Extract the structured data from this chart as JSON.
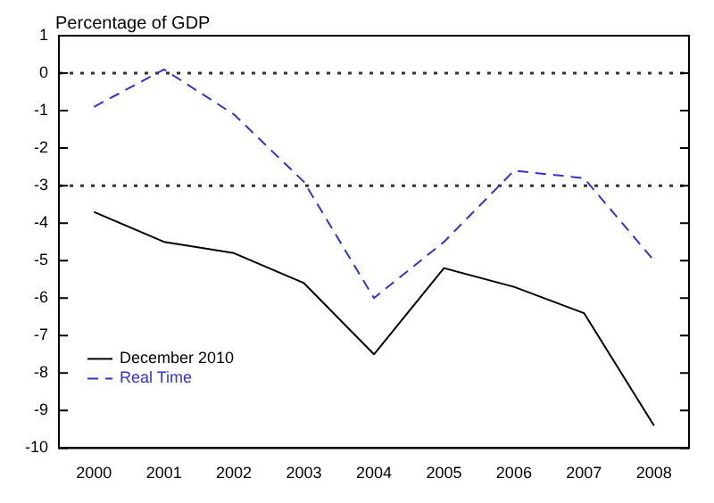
{
  "chart_data": {
    "type": "line",
    "ylabel": "Percentage of GDP",
    "categories": [
      "2000",
      "2001",
      "2002",
      "2003",
      "2004",
      "2005",
      "2006",
      "2007",
      "2008"
    ],
    "series": [
      {
        "name": "December 2010",
        "color": "#000000",
        "line_style": "solid",
        "values": [
          -3.7,
          -4.5,
          -4.8,
          -5.6,
          -7.5,
          -5.2,
          -5.7,
          -6.4,
          -9.4
        ]
      },
      {
        "name": "Real Time",
        "color": "#3333cc",
        "line_style": "dashed",
        "values": [
          -0.9,
          0.1,
          -1.1,
          -2.9,
          -6.0,
          -4.5,
          -2.6,
          -2.8,
          -5.0
        ]
      }
    ],
    "ylim": [
      -10,
      1
    ],
    "yticks": [
      -10,
      -9,
      -8,
      -7,
      -6,
      -5,
      -4,
      -3,
      -2,
      -1,
      0,
      1
    ],
    "ref_lines": [
      {
        "axis": "y",
        "value": 0,
        "line_style": "dotted",
        "color": "#333333"
      },
      {
        "axis": "y",
        "value": -3,
        "line_style": "dotted",
        "color": "#333333"
      }
    ],
    "grid": false,
    "legend": "bottom left",
    "marker": "none"
  }
}
